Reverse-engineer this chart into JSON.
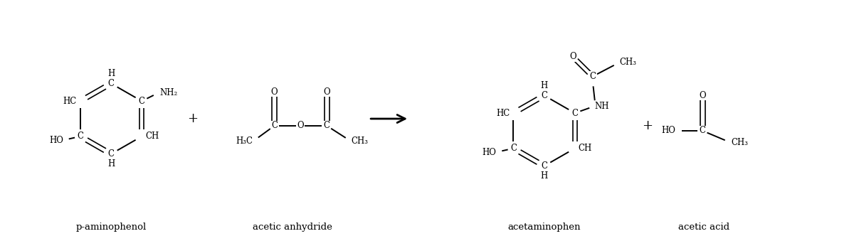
{
  "bg_color": "#ffffff",
  "text_color": "#000000",
  "line_color": "#000000",
  "label_p_aminophenol": "p-aminophenol",
  "label_acetic_anhydride": "acetic anhydride",
  "label_acetaminophen": "acetaminophen",
  "label_acetic_acid": "acetic acid",
  "figsize": [
    12.0,
    3.39
  ],
  "dpi": 100
}
